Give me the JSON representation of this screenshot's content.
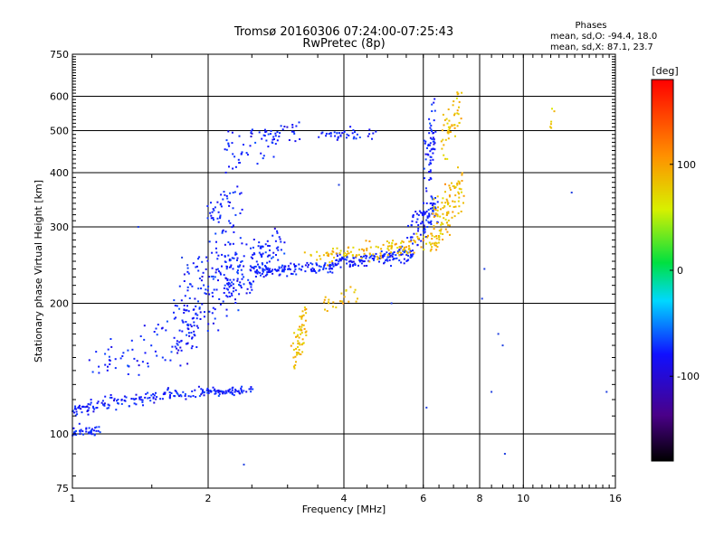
{
  "chart_data": {
    "type": "scatter",
    "title": "Tromsø 20160306 07:24:00-07:25:43",
    "subtitle": "RwPretec (8p)",
    "stats": {
      "heading": "Phases",
      "line_o": "mean, sd,O: -94.4, 18.0",
      "line_x": "mean, sd,X:  87.1, 23.7"
    },
    "xlabel": "Frequency [MHz]",
    "ylabel": "Stationary phase Virtual Height [km]",
    "x_scale": "log",
    "y_scale": "log",
    "xlim": [
      1,
      16
    ],
    "ylim": [
      75,
      750
    ],
    "x_ticks": [
      1,
      2,
      4,
      6,
      8,
      10,
      16
    ],
    "x_tick_labels": [
      "1",
      "2",
      "4",
      "6",
      "8",
      "10",
      "16"
    ],
    "x_gridlines": [
      2,
      4,
      6,
      8,
      10
    ],
    "y_ticks": [
      75,
      100,
      200,
      300,
      400,
      500,
      600,
      750
    ],
    "y_tick_labels": [
      "75",
      "100",
      "200",
      "300",
      "400",
      "500",
      "600",
      "750"
    ],
    "y_gridlines": [
      100,
      200,
      300,
      400,
      500,
      600
    ],
    "grid": true,
    "colorbar": {
      "label": "[deg]",
      "range": [
        -180,
        180
      ],
      "ticks": [
        100,
        0,
        -100
      ],
      "tick_labels": [
        "100",
        "0",
        "-100"
      ],
      "placement": "right"
    },
    "series": [
      {
        "mode": "O",
        "mean_phase_deg": -94.4,
        "sd_phase_deg": 18.0,
        "color_hint": "#1430e6",
        "segments": [
          {
            "f": [
              1.0,
              1.15
            ],
            "h": [
              100,
              103
            ],
            "n": 40,
            "spread": 0.04
          },
          {
            "f": [
              1.0,
              1.2
            ],
            "h": [
              113,
              118
            ],
            "n": 50,
            "spread": 0.05
          },
          {
            "f": [
              1.2,
              1.6
            ],
            "h": [
              118,
              122
            ],
            "n": 55,
            "spread": 0.05
          },
          {
            "f": [
              1.6,
              2.1
            ],
            "h": [
              122,
              126
            ],
            "n": 55,
            "spread": 0.05
          },
          {
            "f": [
              2.05,
              2.5
            ],
            "h": [
              125,
              126
            ],
            "n": 50,
            "spread": 0.03
          },
          {
            "f": [
              1.1,
              1.9
            ],
            "h": [
              130,
              190
            ],
            "n": 80,
            "spread": 0.1
          },
          {
            "f": [
              1.7,
              2.3
            ],
            "h": [
              150,
              320
            ],
            "n": 170,
            "spread": 0.14
          },
          {
            "f": [
              2.2,
              2.9
            ],
            "h": [
              200,
              300
            ],
            "n": 150,
            "spread": 0.1
          },
          {
            "f": [
              2.0,
              2.4
            ],
            "h": [
              300,
              380
            ],
            "n": 40,
            "spread": 0.08
          },
          {
            "f": [
              2.5,
              3.8
            ],
            "h": [
              235,
              245
            ],
            "n": 110,
            "spread": 0.04
          },
          {
            "f": [
              3.8,
              5.7
            ],
            "h": [
              245,
              265
            ],
            "n": 140,
            "spread": 0.05
          },
          {
            "f": [
              5.6,
              6.4
            ],
            "h": [
              265,
              360
            ],
            "n": 90,
            "spread": 0.06
          },
          {
            "f": [
              6.1,
              6.4
            ],
            "h": [
              360,
              610
            ],
            "n": 60,
            "spread": 0.05
          },
          {
            "f": [
              2.2,
              3.2
            ],
            "h": [
              450,
              520
            ],
            "n": 55,
            "spread": 0.05
          },
          {
            "f": [
              3.5,
              4.8
            ],
            "h": [
              480,
              500
            ],
            "n": 40,
            "spread": 0.04
          },
          {
            "f": [
              2.2,
              2.8
            ],
            "h": [
              400,
              470
            ],
            "n": 20,
            "spread": 0.06
          }
        ]
      },
      {
        "mode": "X",
        "mean_phase_deg": 87.1,
        "sd_phase_deg": 23.7,
        "color_hint": "#d8e020",
        "segments": [
          {
            "f": [
              3.1,
              3.3
            ],
            "h": [
              140,
              200
            ],
            "n": 60,
            "spread": 0.05
          },
          {
            "f": [
              3.6,
              4.3
            ],
            "h": [
              190,
              220
            ],
            "n": 25,
            "spread": 0.05
          },
          {
            "f": [
              3.3,
              4.5
            ],
            "h": [
              250,
              270
            ],
            "n": 50,
            "spread": 0.05
          },
          {
            "f": [
              4.5,
              6.5
            ],
            "h": [
              255,
              290
            ],
            "n": 90,
            "spread": 0.06
          },
          {
            "f": [
              6.3,
              7.3
            ],
            "h": [
              260,
              420
            ],
            "n": 110,
            "spread": 0.06
          },
          {
            "f": [
              6.6,
              7.2
            ],
            "h": [
              420,
              640
            ],
            "n": 50,
            "spread": 0.05
          },
          {
            "f": [
              11.5,
              11.6
            ],
            "h": [
              490,
              590
            ],
            "n": 6,
            "spread": 0.04
          }
        ]
      },
      {
        "mode": "scattered",
        "color_hint": "#2040e0",
        "points": [
          [
            1.4,
            300
          ],
          [
            1.75,
            255
          ],
          [
            1.8,
            245
          ],
          [
            2.4,
            85
          ],
          [
            3.9,
            375
          ],
          [
            8.2,
            240
          ],
          [
            8.5,
            125
          ],
          [
            8.8,
            170
          ],
          [
            9.1,
            90
          ],
          [
            12.8,
            360
          ],
          [
            5.1,
            200
          ],
          [
            15.3,
            125
          ],
          [
            9.0,
            160
          ],
          [
            8.1,
            205
          ],
          [
            6.1,
            115
          ]
        ]
      }
    ]
  }
}
